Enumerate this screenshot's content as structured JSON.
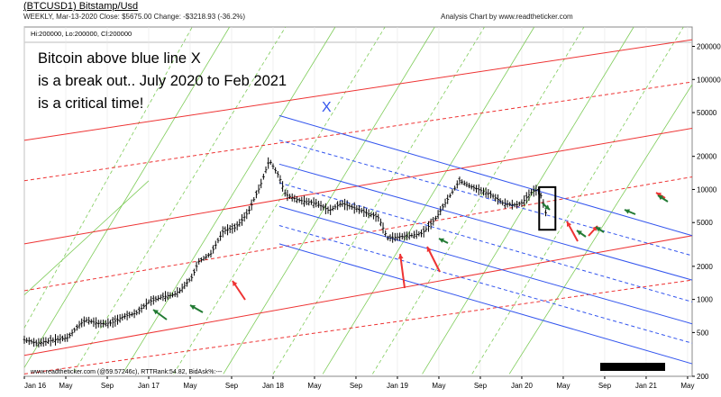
{
  "header": {
    "title": "(BTCUSD1) Bitstamp/Usd",
    "subline": "WEEKLY, Mar-13-2020  Close: $5675.00  Change: -$3218.93  (-36.2%)",
    "attribution": "Analysis Chart by www.readtheticker.com",
    "ohlc_line": "Hi:200000, Lo:200000, Cl:200000",
    "footer_text": "www.readtheticker.com (@59.57246c), RTTRank:54.82, BidAsk%:---"
  },
  "annotation": {
    "line1": "Bitcoin above blue line X",
    "line2": "is a break out.. July 2020 to Feb 2021",
    "line3": "is a critical time!",
    "x_label": "X"
  },
  "colors": {
    "blue": "#3355ee",
    "red": "#ee3333",
    "green": "#7fcc5a",
    "dark_green": "#227a33",
    "bars": "#000000"
  },
  "chart_data": {
    "type": "ohlc",
    "scale": "log",
    "ylim": [
      200,
      300000
    ],
    "y_ticks": [
      200000,
      100000,
      50000,
      20000,
      10000,
      5000,
      2000,
      1000,
      500,
      200
    ],
    "x_ticks": [
      "Jan 16",
      "May",
      "Sep",
      "Jan 17",
      "May",
      "Sep",
      "Jan 18",
      "May",
      "Sep",
      "Jan 19",
      "May",
      "Sep",
      "Jan 20",
      "May",
      "Sep",
      "Jan 21",
      "May"
    ],
    "x_range_years": [
      2016.0,
      2021.37
    ],
    "close_path": [
      [
        2016.0,
        430
      ],
      [
        2016.1,
        400
      ],
      [
        2016.2,
        420
      ],
      [
        2016.35,
        450
      ],
      [
        2016.45,
        600
      ],
      [
        2016.5,
        650
      ],
      [
        2016.6,
        600
      ],
      [
        2016.7,
        610
      ],
      [
        2016.8,
        700
      ],
      [
        2016.9,
        750
      ],
      [
        2017.0,
        950
      ],
      [
        2017.1,
        1050
      ],
      [
        2017.2,
        1100
      ],
      [
        2017.25,
        1200
      ],
      [
        2017.35,
        1600
      ],
      [
        2017.4,
        2200
      ],
      [
        2017.5,
        2600
      ],
      [
        2017.6,
        4200
      ],
      [
        2017.7,
        4500
      ],
      [
        2017.8,
        6200
      ],
      [
        2017.9,
        11000
      ],
      [
        2017.97,
        18500
      ],
      [
        2018.05,
        13000
      ],
      [
        2018.1,
        9000
      ],
      [
        2018.2,
        8000
      ],
      [
        2018.35,
        7500
      ],
      [
        2018.45,
        6400
      ],
      [
        2018.55,
        7500
      ],
      [
        2018.7,
        6500
      ],
      [
        2018.85,
        5500
      ],
      [
        2018.92,
        3600
      ],
      [
        2019.0,
        3700
      ],
      [
        2019.1,
        3800
      ],
      [
        2019.2,
        4000
      ],
      [
        2019.3,
        5300
      ],
      [
        2019.4,
        8000
      ],
      [
        2019.5,
        12000
      ],
      [
        2019.6,
        10500
      ],
      [
        2019.75,
        9000
      ],
      [
        2019.85,
        7500
      ],
      [
        2019.95,
        7200
      ],
      [
        2020.0,
        7500
      ],
      [
        2020.08,
        9500
      ],
      [
        2020.13,
        10000
      ],
      [
        2020.16,
        8500
      ],
      [
        2020.2,
        5675
      ]
    ],
    "markers": {
      "red_arrows": 6,
      "green_arrows": 8
    }
  }
}
